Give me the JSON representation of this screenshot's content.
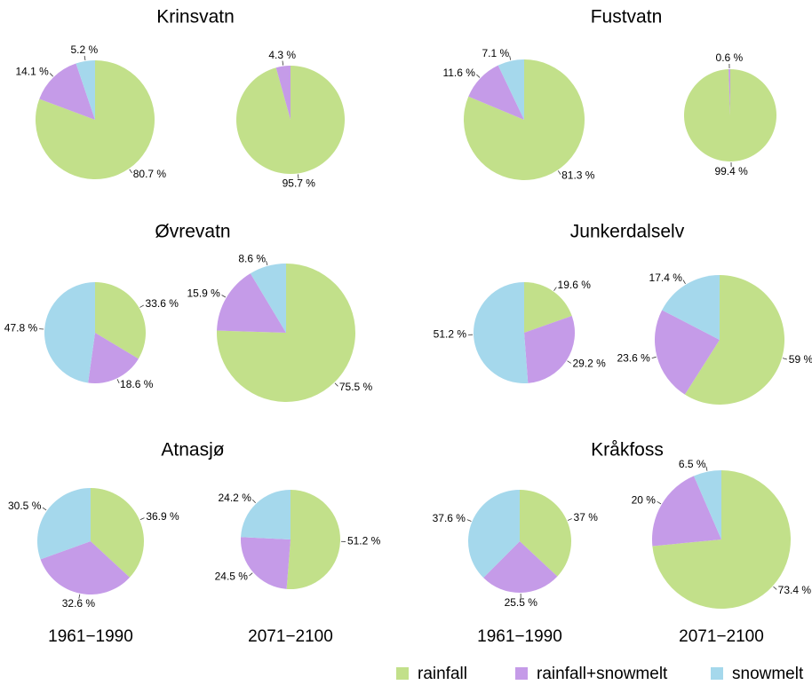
{
  "chart_data": [
    {
      "type": "pie",
      "title": "Krinsvatn",
      "pies": [
        {
          "values": [
            80.7,
            14.1,
            5.2
          ],
          "value_labels": [
            "80.7 %",
            "14.1 %",
            "5.2 %"
          ]
        },
        {
          "values": [
            95.7,
            4.3,
            null
          ],
          "value_labels": [
            "95.7 %",
            "4.3 %",
            null
          ]
        }
      ]
    },
    {
      "type": "pie",
      "title": "Fustvatn",
      "pies": [
        {
          "values": [
            81.3,
            11.6,
            7.1
          ],
          "value_labels": [
            "81.3 %",
            "11.6 %",
            "7.1 %"
          ]
        },
        {
          "values": [
            99.4,
            0.6,
            null
          ],
          "value_labels": [
            "99.4 %",
            "0.6 %",
            null
          ]
        }
      ]
    },
    {
      "type": "pie",
      "title": "Øvrevatn",
      "pies": [
        {
          "values": [
            33.6,
            18.6,
            47.8
          ],
          "value_labels": [
            "33.6 %",
            "18.6 %",
            "47.8 %"
          ]
        },
        {
          "values": [
            75.5,
            15.9,
            8.6
          ],
          "value_labels": [
            "75.5 %",
            "15.9 %",
            "8.6 %"
          ]
        }
      ]
    },
    {
      "type": "pie",
      "title": "Junkerdalselv",
      "pies": [
        {
          "values": [
            19.6,
            29.2,
            51.2
          ],
          "value_labels": [
            "19.6 %",
            "29.2 %",
            "51.2 %"
          ]
        },
        {
          "values": [
            59,
            23.6,
            17.4
          ],
          "value_labels": [
            "59 %",
            "23.6 %",
            "17.4 %"
          ]
        }
      ]
    },
    {
      "type": "pie",
      "title": "Atnasjø",
      "pies": [
        {
          "values": [
            36.9,
            32.6,
            30.5
          ],
          "value_labels": [
            "36.9 %",
            "32.6 %",
            "30.5 %"
          ]
        },
        {
          "values": [
            51.2,
            24.5,
            24.2
          ],
          "value_labels": [
            "51.2 %",
            "24.5 %",
            "24.2 %"
          ]
        }
      ]
    },
    {
      "type": "pie",
      "title": "Kråkfoss",
      "pies": [
        {
          "values": [
            37,
            25.5,
            37.6
          ],
          "value_labels": [
            "37 %",
            "25.5 %",
            "37.6 %"
          ]
        },
        {
          "values": [
            73.4,
            20,
            6.5
          ],
          "value_labels": [
            "73.4 %",
            "20 %",
            "6.5 %"
          ]
        }
      ]
    }
  ],
  "period_labels": [
    "1961−1990",
    "2071−2100",
    "1961−1990",
    "2071−2100"
  ],
  "legend": {
    "labels": [
      "rainfall",
      "rainfall+snowmelt",
      "snowmelt"
    ],
    "colors": [
      "#c2e08a",
      "#c59be8",
      "#a5d8ec"
    ]
  }
}
